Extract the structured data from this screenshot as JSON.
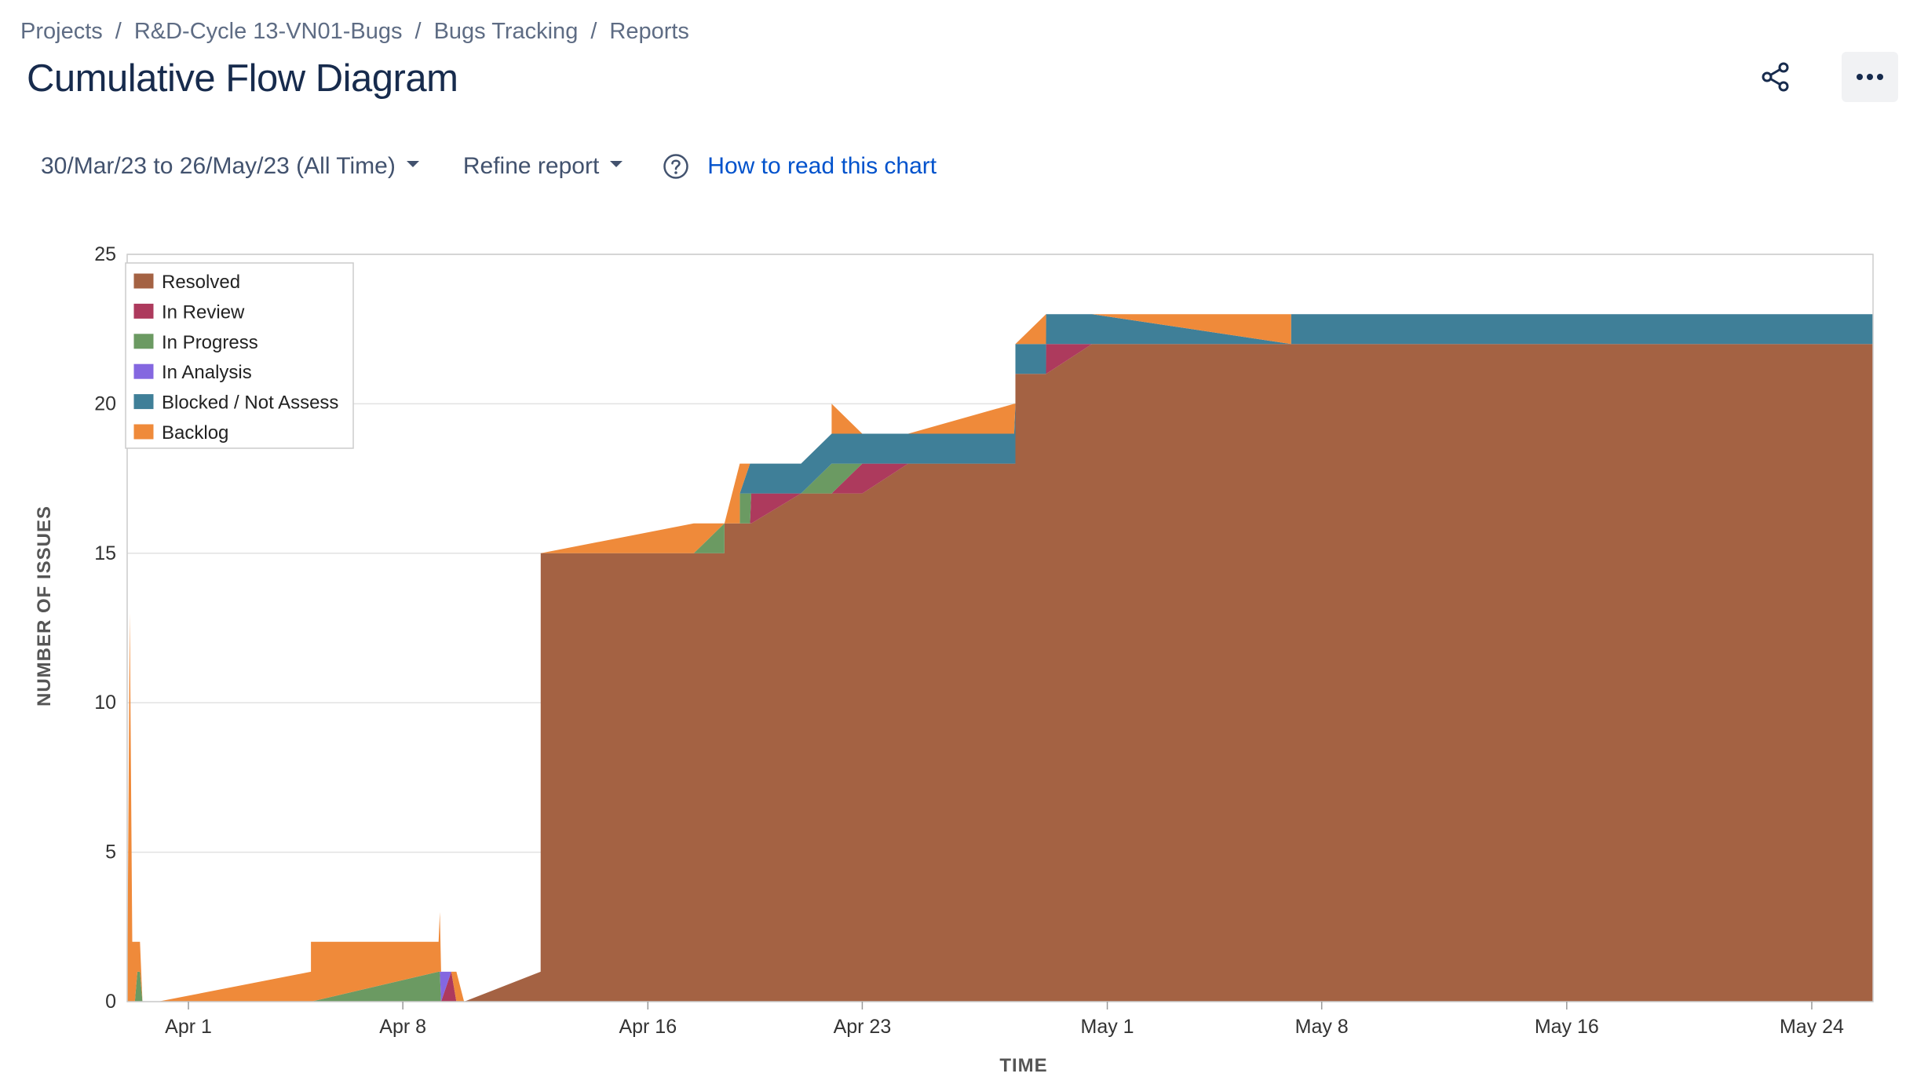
{
  "breadcrumb": {
    "items": [
      "Projects",
      "R&D-Cycle 13-VN01-Bugs",
      "Bugs Tracking",
      "Reports"
    ],
    "separator": "/"
  },
  "page": {
    "title": "Cumulative Flow Diagram"
  },
  "toolbar": {
    "date_range": "30/Mar/23 to 26/May/23 (All Time)",
    "refine_label": "Refine report",
    "help_link": "How to read this chart"
  },
  "icons": {
    "share": "share-icon",
    "more": "more-icon",
    "help": "help-icon",
    "caret": "chevron-down-icon"
  },
  "chart_data": {
    "type": "area",
    "stacked": true,
    "xlabel": "TIME",
    "ylabel": "NUMBER OF ISSUES",
    "xrange": [
      "2023-03-30",
      "2023-05-26"
    ],
    "ylim": [
      0,
      25
    ],
    "yticks": [
      0,
      5,
      10,
      15,
      20,
      25
    ],
    "xticks": [
      {
        "label": "Apr 1",
        "date": "2023-04-01"
      },
      {
        "label": "Apr 8",
        "date": "2023-04-08"
      },
      {
        "label": "Apr 16",
        "date": "2023-04-16"
      },
      {
        "label": "Apr 23",
        "date": "2023-04-23"
      },
      {
        "label": "May 1",
        "date": "2023-05-01"
      },
      {
        "label": "May 8",
        "date": "2023-05-08"
      },
      {
        "label": "May 16",
        "date": "2023-05-16"
      },
      {
        "label": "May 24",
        "date": "2023-05-24"
      }
    ],
    "grid": true,
    "legend_position": "top-left",
    "series": [
      {
        "name": "Resolved",
        "color": "#a46243"
      },
      {
        "name": "In Review",
        "color": "#ad3a5d"
      },
      {
        "name": "In Progress",
        "color": "#6b9a62"
      },
      {
        "name": "In Analysis",
        "color": "#8467e0"
      },
      {
        "name": "Blocked / Not Assess",
        "color": "#3f7f98"
      },
      {
        "name": "Backlog",
        "color": "#ef8a3a"
      }
    ],
    "points": [
      {
        "t": "2023-03-30 00:00",
        "v": [
          0,
          0,
          0,
          0,
          0,
          0
        ]
      },
      {
        "t": "2023-03-30 02:00",
        "v": [
          0,
          0,
          0,
          0,
          0,
          13
        ]
      },
      {
        "t": "2023-03-30 04:00",
        "v": [
          0,
          0,
          0,
          0,
          0,
          2
        ]
      },
      {
        "t": "2023-03-30 06:00",
        "v": [
          0,
          0,
          0,
          0,
          0,
          2
        ]
      },
      {
        "t": "2023-03-30 08:00",
        "v": [
          0,
          0,
          1,
          0,
          0,
          1
        ]
      },
      {
        "t": "2023-03-30 10:00",
        "v": [
          0,
          0,
          1,
          0,
          0,
          1
        ]
      },
      {
        "t": "2023-03-30 12:00",
        "v": [
          0,
          0,
          0,
          0,
          0,
          0
        ]
      },
      {
        "t": "2023-03-31 00:00",
        "v": [
          0,
          0,
          0,
          0,
          0,
          0
        ]
      },
      {
        "t": "2023-04-05 00:00",
        "v": [
          0,
          0,
          0,
          0,
          0,
          1
        ]
      },
      {
        "t": "2023-04-05 00:01",
        "v": [
          0,
          0,
          0,
          0,
          0,
          2
        ]
      },
      {
        "t": "2023-04-09 04:00",
        "v": [
          0,
          0,
          1,
          0,
          0,
          1
        ]
      },
      {
        "t": "2023-04-09 05:00",
        "v": [
          0,
          0,
          1,
          0,
          0,
          2
        ]
      },
      {
        "t": "2023-04-09 06:00",
        "v": [
          0,
          0,
          0,
          1,
          0,
          0
        ]
      },
      {
        "t": "2023-04-09 14:00",
        "v": [
          0,
          1,
          0,
          0,
          0,
          0
        ]
      },
      {
        "t": "2023-04-09 18:00",
        "v": [
          0,
          0,
          0,
          0,
          0,
          1
        ]
      },
      {
        "t": "2023-04-10 00:00",
        "v": [
          0,
          0,
          0,
          0,
          0,
          0
        ]
      },
      {
        "t": "2023-04-12 12:00",
        "v": [
          1,
          0,
          0,
          0,
          0,
          0
        ]
      },
      {
        "t": "2023-04-12 12:01",
        "v": [
          15,
          0,
          0,
          0,
          0,
          0
        ]
      },
      {
        "t": "2023-04-17 12:00",
        "v": [
          15,
          0,
          0,
          0,
          0,
          1
        ]
      },
      {
        "t": "2023-04-18 12:00",
        "v": [
          15,
          0,
          1,
          0,
          0,
          0
        ]
      },
      {
        "t": "2023-04-18 12:01",
        "v": [
          16,
          0,
          0,
          0,
          0,
          0
        ]
      },
      {
        "t": "2023-04-19 00:00",
        "v": [
          16,
          0,
          0,
          0,
          0,
          2
        ]
      },
      {
        "t": "2023-04-19 00:01",
        "v": [
          16,
          0,
          1,
          0,
          0,
          1
        ]
      },
      {
        "t": "2023-04-19 08:00",
        "v": [
          16,
          0,
          1,
          0,
          1,
          0
        ]
      },
      {
        "t": "2023-04-19 09:00",
        "v": [
          16,
          1,
          0,
          0,
          1,
          0
        ]
      },
      {
        "t": "2023-04-21 00:00",
        "v": [
          17,
          0,
          0,
          0,
          1,
          0
        ]
      },
      {
        "t": "2023-04-22 00:00",
        "v": [
          17,
          0,
          1,
          0,
          1,
          0
        ]
      },
      {
        "t": "2023-04-22 00:01",
        "v": [
          17,
          0,
          1,
          0,
          1,
          1
        ]
      },
      {
        "t": "2023-04-23 00:00",
        "v": [
          17,
          1,
          0,
          0,
          1,
          0
        ]
      },
      {
        "t": "2023-04-24 12:00",
        "v": [
          18,
          0,
          0,
          0,
          1,
          0
        ]
      },
      {
        "t": "2023-04-27 23:00",
        "v": [
          18,
          0,
          0,
          0,
          1,
          1
        ]
      },
      {
        "t": "2023-04-28 00:00",
        "v": [
          18,
          0,
          0,
          0,
          2,
          0
        ]
      },
      {
        "t": "2023-04-28 00:01",
        "v": [
          21,
          0,
          0,
          0,
          1,
          0
        ]
      },
      {
        "t": "2023-04-29 00:00",
        "v": [
          21,
          0,
          0,
          0,
          1,
          1
        ]
      },
      {
        "t": "2023-04-29 00:01",
        "v": [
          21,
          1,
          0,
          0,
          1,
          0
        ]
      },
      {
        "t": "2023-04-30 12:00",
        "v": [
          22,
          0,
          0,
          0,
          1,
          0
        ]
      },
      {
        "t": "2023-05-07 00:00",
        "v": [
          22,
          0,
          0,
          0,
          0,
          1
        ]
      },
      {
        "t": "2023-05-07 00:01",
        "v": [
          22,
          0,
          0,
          0,
          1,
          0
        ]
      },
      {
        "t": "2023-05-26 00:00",
        "v": [
          22,
          0,
          0,
          0,
          1,
          0
        ]
      }
    ]
  }
}
